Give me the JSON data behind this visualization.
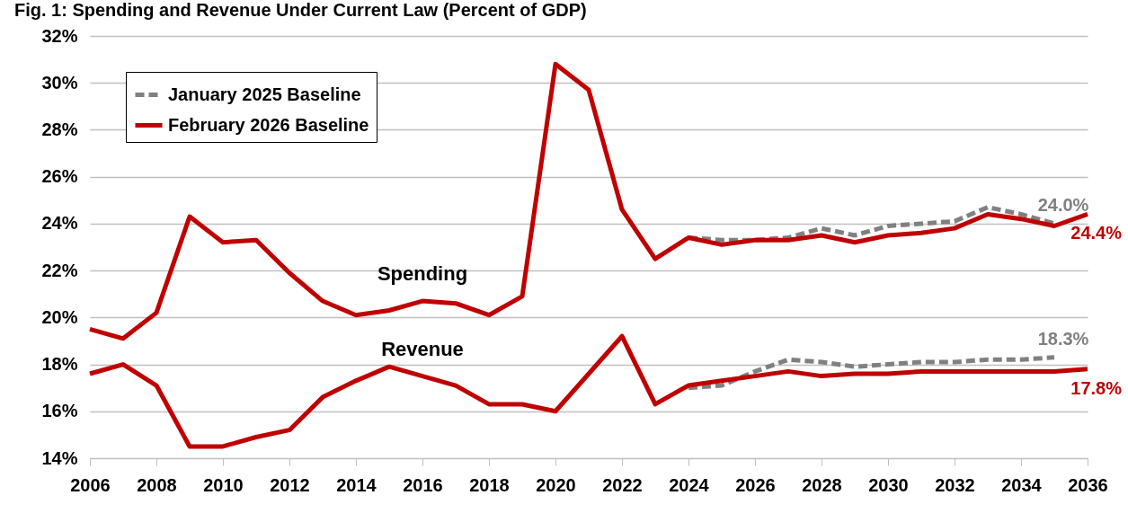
{
  "chart_data": {
    "type": "line",
    "title": "Fig. 1: Spending and Revenue Under Current Law (Percent of GDP)",
    "xlim": [
      2006,
      2036
    ],
    "xticks": [
      2006,
      2008,
      2010,
      2012,
      2014,
      2016,
      2018,
      2020,
      2022,
      2024,
      2026,
      2028,
      2030,
      2032,
      2034,
      2036
    ],
    "ylim": [
      14,
      32
    ],
    "yticks": [
      {
        "value": 14,
        "label": "14%"
      },
      {
        "value": 16,
        "label": "16%"
      },
      {
        "value": 18,
        "label": "18%"
      },
      {
        "value": 20,
        "label": "20%"
      },
      {
        "value": 22,
        "label": "22%"
      },
      {
        "value": 24,
        "label": "24%"
      },
      {
        "value": 26,
        "label": "26%"
      },
      {
        "value": 28,
        "label": "28%"
      },
      {
        "value": 30,
        "label": "30%"
      },
      {
        "value": 32,
        "label": "32%"
      }
    ],
    "grid": "y",
    "legend": "top left",
    "annotations": [
      "Spending",
      "Revenue"
    ],
    "series": [
      {
        "name": "January 2025 Baseline",
        "color": "#808080",
        "line_style": "dashed",
        "x": [
          2024,
          2025,
          2026,
          2027,
          2028,
          2029,
          2030,
          2031,
          2032,
          2033,
          2034,
          2035
        ],
        "values": [
          23.4,
          23.3,
          23.3,
          23.4,
          23.8,
          23.5,
          23.9,
          24.0,
          24.1,
          24.7,
          24.4,
          24.0
        ],
        "value_labels": [
          null,
          null,
          null,
          null,
          null,
          null,
          null,
          null,
          null,
          null,
          null,
          "24.0%"
        ]
      },
      {
        "name": "February 2026 Baseline",
        "color": "#c00000",
        "line_style": "solid",
        "x": [
          2006,
          2007,
          2008,
          2009,
          2010,
          2011,
          2012,
          2013,
          2014,
          2015,
          2016,
          2017,
          2018,
          2019,
          2020,
          2021,
          2022,
          2023,
          2024,
          2025,
          2026,
          2027,
          2028,
          2029,
          2030,
          2031,
          2032,
          2033,
          2034,
          2035,
          2036
        ],
        "values": [
          19.5,
          19.1,
          20.2,
          24.3,
          23.2,
          23.3,
          21.9,
          20.7,
          20.1,
          20.3,
          20.7,
          20.6,
          20.1,
          20.9,
          30.8,
          29.7,
          24.6,
          22.5,
          23.4,
          23.1,
          23.3,
          23.3,
          23.5,
          23.2,
          23.5,
          23.6,
          23.8,
          24.4,
          24.2,
          23.9,
          24.4
        ],
        "value_labels": [
          null,
          null,
          null,
          null,
          null,
          null,
          null,
          null,
          null,
          null,
          null,
          null,
          null,
          null,
          null,
          null,
          null,
          null,
          null,
          null,
          null,
          null,
          null,
          null,
          null,
          null,
          null,
          null,
          null,
          null,
          "24.4%"
        ]
      },
      {
        "color": "#808080",
        "line_style": "dashed",
        "x": [
          2024,
          2025,
          2026,
          2027,
          2028,
          2029,
          2030,
          2031,
          2032,
          2033,
          2034,
          2035
        ],
        "values": [
          17.0,
          17.1,
          17.7,
          18.2,
          18.1,
          17.9,
          18.0,
          18.1,
          18.1,
          18.2,
          18.2,
          18.3
        ],
        "value_labels": [
          null,
          null,
          null,
          null,
          null,
          null,
          null,
          null,
          null,
          null,
          null,
          "18.3%"
        ]
      },
      {
        "color": "#c00000",
        "line_style": "solid",
        "x": [
          2006,
          2007,
          2008,
          2009,
          2010,
          2011,
          2012,
          2013,
          2014,
          2015,
          2016,
          2017,
          2018,
          2019,
          2020,
          2021,
          2022,
          2023,
          2024,
          2025,
          2026,
          2027,
          2028,
          2029,
          2030,
          2031,
          2032,
          2033,
          2034,
          2035,
          2036
        ],
        "values": [
          17.6,
          18.0,
          17.1,
          14.5,
          14.5,
          14.9,
          15.2,
          16.6,
          17.3,
          17.9,
          17.5,
          17.1,
          16.3,
          16.3,
          16.0,
          17.6,
          19.2,
          16.3,
          17.1,
          17.3,
          17.5,
          17.7,
          17.5,
          17.6,
          17.6,
          17.7,
          17.7,
          17.7,
          17.7,
          17.7,
          17.8
        ],
        "value_labels": [
          null,
          null,
          null,
          null,
          null,
          null,
          null,
          null,
          null,
          null,
          null,
          null,
          null,
          null,
          null,
          null,
          null,
          null,
          null,
          null,
          null,
          null,
          null,
          null,
          null,
          null,
          null,
          null,
          null,
          null,
          "17.8%"
        ]
      }
    ]
  }
}
